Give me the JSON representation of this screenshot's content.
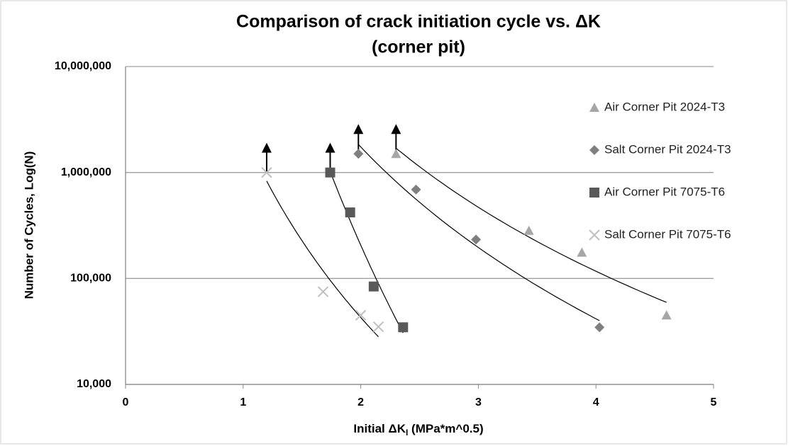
{
  "chart_data": {
    "type": "scatter",
    "title": "Comparison of crack initiation cycle vs. ΔK",
    "subtitle": "(corner pit)",
    "xlabel": [
      "Initial ΔK",
      "I",
      " (MPa*m^0.5)"
    ],
    "ylabel": "Number of Cycles, Log(N)",
    "xlim": [
      0,
      5
    ],
    "xticks": [
      0,
      1,
      2,
      3,
      4,
      5
    ],
    "ylim": [
      10000,
      10000000
    ],
    "log_y": true,
    "yticks": [
      {
        "value": 10000,
        "label": "10,000"
      },
      {
        "value": 100000,
        "label": "100,000"
      },
      {
        "value": 1000000,
        "label": "1,000,000"
      },
      {
        "value": 10000000,
        "label": "10,000,000"
      }
    ],
    "grid": true,
    "legend": "right",
    "trendline": "power",
    "series": [
      {
        "name": "Air Corner Pit 2024-T3",
        "marker": "triangle",
        "color": "#a6a6a6",
        "x": [
          2.3,
          3.43,
          3.88,
          4.6
        ],
        "values": [
          1500000,
          283000,
          176000,
          45000
        ]
      },
      {
        "name": "Salt Corner Pit 2024-T3",
        "marker": "diamond",
        "color": "#7f7f7f",
        "x": [
          1.98,
          2.47,
          2.98,
          4.03
        ],
        "values": [
          1500000,
          690000,
          233000,
          34600
        ]
      },
      {
        "name": "Air Corner Pit 7075-T6",
        "marker": "square",
        "color": "#595959",
        "x": [
          1.74,
          1.91,
          2.11,
          2.36
        ],
        "values": [
          1000000,
          420000,
          84000,
          34600
        ]
      },
      {
        "name": "Salt Corner Pit 7075-T6",
        "marker": "x",
        "color": "#bfbfbf",
        "x": [
          1.2,
          1.68,
          2.0,
          2.15
        ],
        "values": [
          1000000,
          75000,
          45000,
          35000
        ]
      }
    ]
  }
}
